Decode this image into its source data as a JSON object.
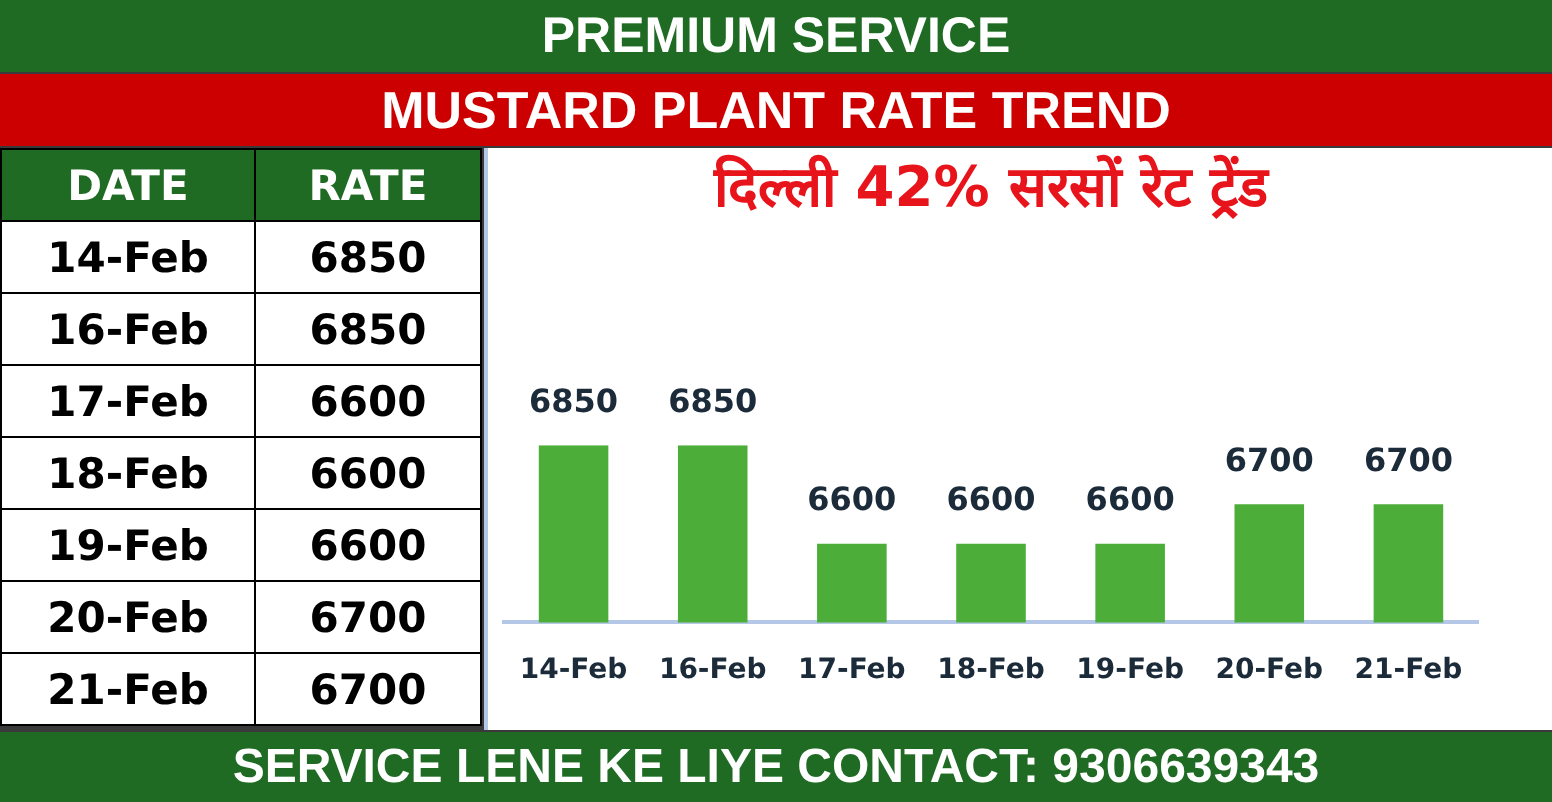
{
  "chart_data": [
    {
      "type": "other",
      "title": "MUSTARD PLANT RATE TREND",
      "categories": [
        "14-Feb",
        "16-Feb",
        "17-Feb",
        "18-Feb",
        "19-Feb",
        "20-Feb",
        "21-Feb"
      ],
      "values": [
        6850,
        6850,
        6600,
        6600,
        6600,
        6700,
        6700
      ],
      "data_labels": true,
      "annotations": [
        "PREMIUM SERVICE",
        "DATE",
        "RATE",
        "SERVICE LENE KE LIYE CONTACT: 9306639343"
      ]
    },
    {
      "type": "bar",
      "title": "दिल्ली 42% सरसों रेट ट्रेंड",
      "categories": [
        "14-Feb",
        "16-Feb",
        "17-Feb",
        "18-Feb",
        "19-Feb",
        "20-Feb",
        "21-Feb"
      ],
      "values": [
        6850,
        6850,
        6600,
        6600,
        6600,
        6700,
        6700
      ],
      "color": "#4cae38",
      "tick_labels": "x",
      "data_labels": true
    }
  ]
}
